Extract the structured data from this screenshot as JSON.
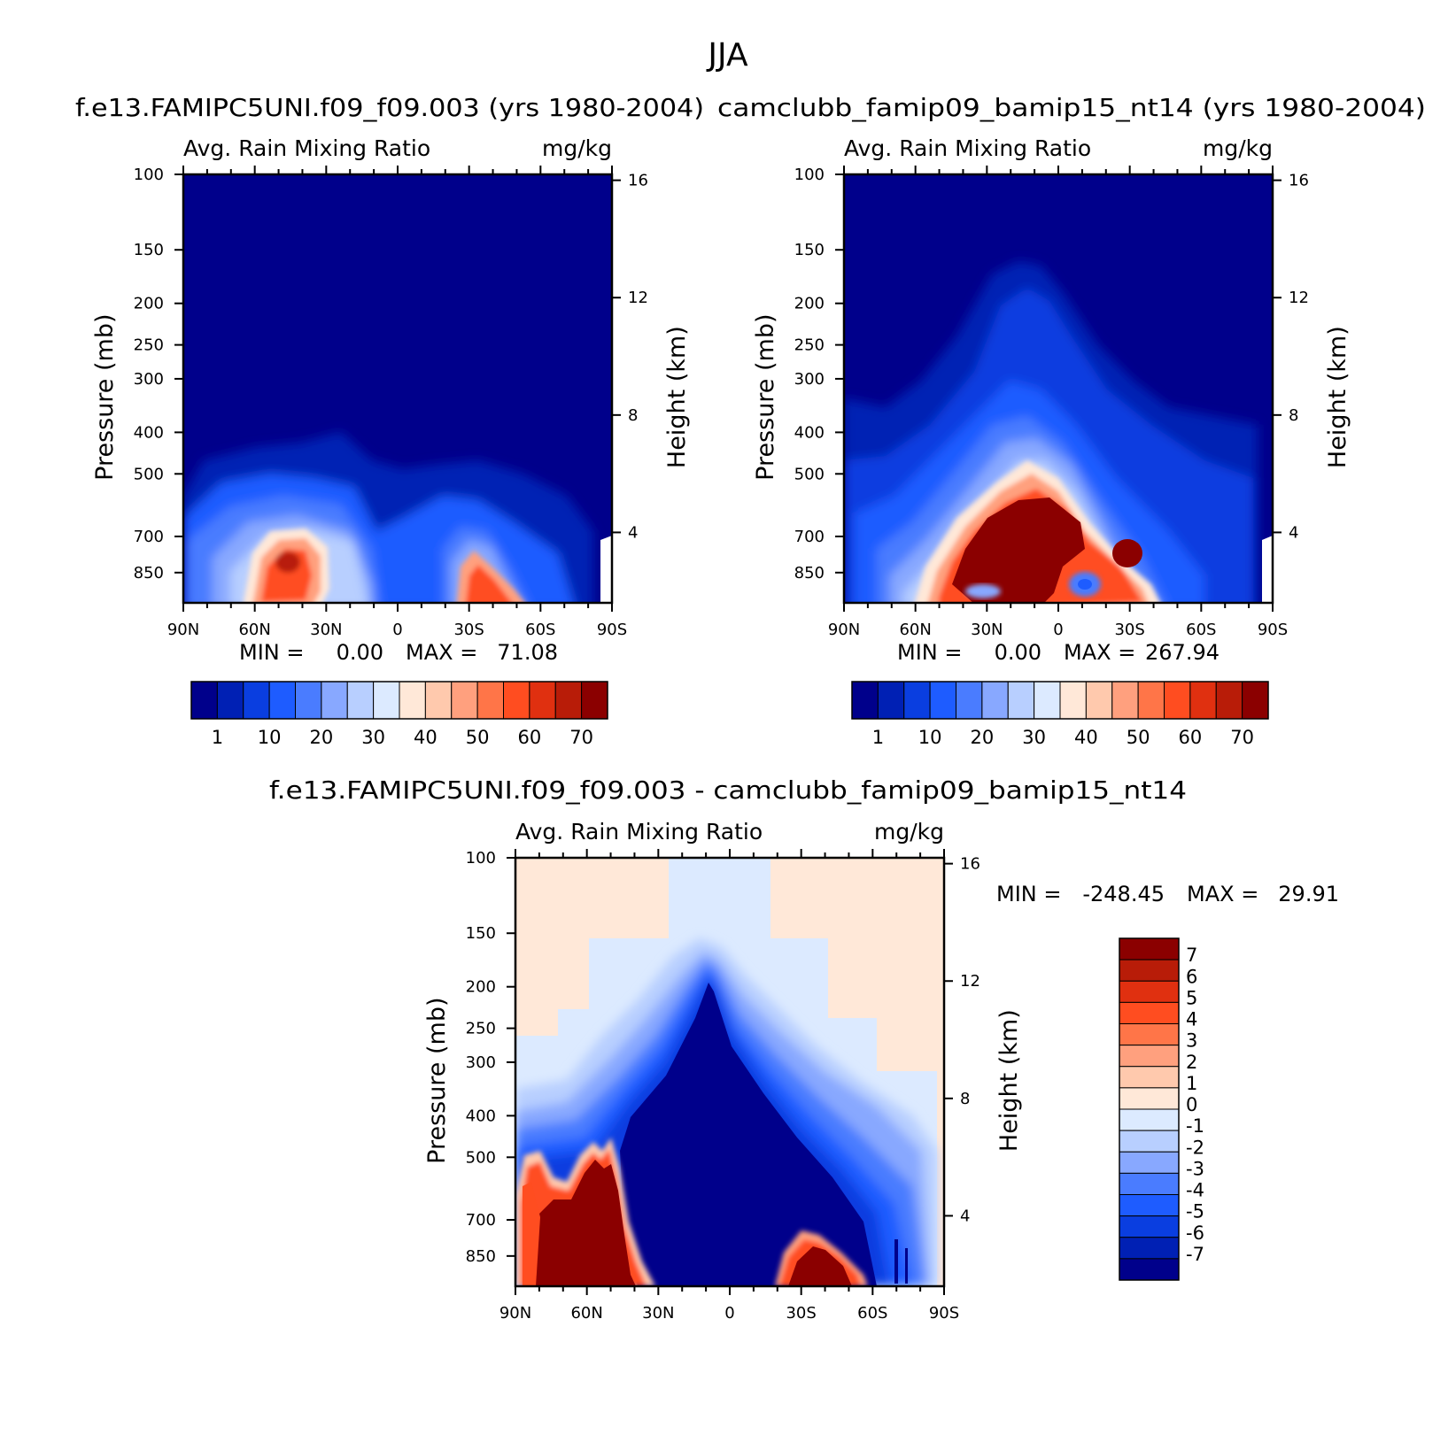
{
  "figure": {
    "title": "JJA"
  },
  "panels": [
    {
      "id": "model-a",
      "title": "f.e13.FAMIPC5UNI.f09_f09.003 (yrs 1980-2004)",
      "variable": "Avg. Rain Mixing Ratio",
      "units": "mg/kg",
      "stats": {
        "min_label": "MIN =",
        "min": "0.00",
        "max_label": "MAX =",
        "max": "71.08"
      }
    },
    {
      "id": "model-b",
      "title": "camclubb_famip09_bamip15_nt14 (yrs 1980-2004)",
      "variable": "Avg. Rain Mixing Ratio",
      "units": "mg/kg",
      "stats": {
        "min_label": "MIN =",
        "min": "0.00",
        "max_label": "MAX =",
        "max": "267.94"
      }
    },
    {
      "id": "difference",
      "title": "f.e13.FAMIPC5UNI.f09_f09.003 - camclubb_famip09_bamip15_nt14",
      "variable": "Avg. Rain Mixing Ratio",
      "units": "mg/kg",
      "stats": {
        "min_label": "MIN =",
        "min": "-248.45",
        "max_label": "MAX =",
        "max": "29.91"
      }
    }
  ],
  "chart_data": [
    {
      "type": "heatmap",
      "title": "f.e13.FAMIPC5UNI.f09_f09.003 (yrs 1980-2004)",
      "subtitle": "Avg. Rain Mixing Ratio",
      "units": "mg/kg",
      "xlabel": "",
      "ylabel": "Pressure (mb)",
      "y2label": "Height (km)",
      "x_ticks": [
        "90N",
        "60N",
        "30N",
        "0",
        "30S",
        "60S",
        "90S"
      ],
      "x_range": [
        90,
        -90
      ],
      "y_ticks": [
        100,
        150,
        200,
        250,
        300,
        400,
        500,
        700,
        850
      ],
      "y_range": [
        100,
        1000
      ],
      "y_scale": "log",
      "y2_ticks": [
        16,
        12,
        8,
        4
      ],
      "min": 0.0,
      "max": 71.08,
      "colorbar": {
        "orientation": "horizontal",
        "labels": [
          "1",
          "10",
          "20",
          "30",
          "40",
          "50",
          "60",
          "70"
        ],
        "colors": [
          "#00008b",
          "#0020b4",
          "#0a3ee0",
          "#1e5cff",
          "#4a7cff",
          "#88a8ff",
          "#b8cfff",
          "#dceaff",
          "#ffe8d8",
          "#ffc9ad",
          "#ffa07e",
          "#ff7548",
          "#ff4d20",
          "#e03010",
          "#b81c08",
          "#8b0000"
        ]
      }
    },
    {
      "type": "heatmap",
      "title": "camclubb_famip09_bamip15_nt14 (yrs 1980-2004)",
      "subtitle": "Avg. Rain Mixing Ratio",
      "units": "mg/kg",
      "xlabel": "",
      "ylabel": "Pressure (mb)",
      "y2label": "Height (km)",
      "x_ticks": [
        "90N",
        "60N",
        "30N",
        "0",
        "30S",
        "60S",
        "90S"
      ],
      "x_range": [
        90,
        -90
      ],
      "y_ticks": [
        100,
        150,
        200,
        250,
        300,
        400,
        500,
        700,
        850
      ],
      "y_range": [
        100,
        1000
      ],
      "y_scale": "log",
      "y2_ticks": [
        16,
        12,
        8,
        4
      ],
      "min": 0.0,
      "max": 267.94,
      "colorbar": {
        "orientation": "horizontal",
        "labels": [
          "1",
          "10",
          "20",
          "30",
          "40",
          "50",
          "60",
          "70"
        ],
        "colors": [
          "#00008b",
          "#0020b4",
          "#0a3ee0",
          "#1e5cff",
          "#4a7cff",
          "#88a8ff",
          "#b8cfff",
          "#dceaff",
          "#ffe8d8",
          "#ffc9ad",
          "#ffa07e",
          "#ff7548",
          "#ff4d20",
          "#e03010",
          "#b81c08",
          "#8b0000"
        ]
      }
    },
    {
      "type": "heatmap",
      "title": "f.e13.FAMIPC5UNI.f09_f09.003 - camclubb_famip09_bamip15_nt14",
      "subtitle": "Avg. Rain Mixing Ratio",
      "units": "mg/kg",
      "xlabel": "",
      "ylabel": "Pressure (mb)",
      "y2label": "Height (km)",
      "x_ticks": [
        "90N",
        "60N",
        "30N",
        "0",
        "30S",
        "60S",
        "90S"
      ],
      "x_range": [
        90,
        -90
      ],
      "y_ticks": [
        100,
        150,
        200,
        250,
        300,
        400,
        500,
        700,
        850
      ],
      "y_range": [
        100,
        1000
      ],
      "y_scale": "log",
      "y2_ticks": [
        16,
        12,
        8,
        4
      ],
      "min": -248.45,
      "max": 29.91,
      "colorbar": {
        "orientation": "vertical",
        "labels": [
          "7",
          "6",
          "5",
          "4",
          "3",
          "2",
          "1",
          "0",
          "-1",
          "-2",
          "-3",
          "-4",
          "-5",
          "-6",
          "-7"
        ],
        "colors": [
          "#8b0000",
          "#b81c08",
          "#e03010",
          "#ff4d20",
          "#ff7548",
          "#ffa07e",
          "#ffc9ad",
          "#ffe8d8",
          "#dceaff",
          "#b8cfff",
          "#88a8ff",
          "#4a7cff",
          "#1e5cff",
          "#0a3ee0",
          "#0020b4",
          "#00008b"
        ]
      }
    }
  ]
}
